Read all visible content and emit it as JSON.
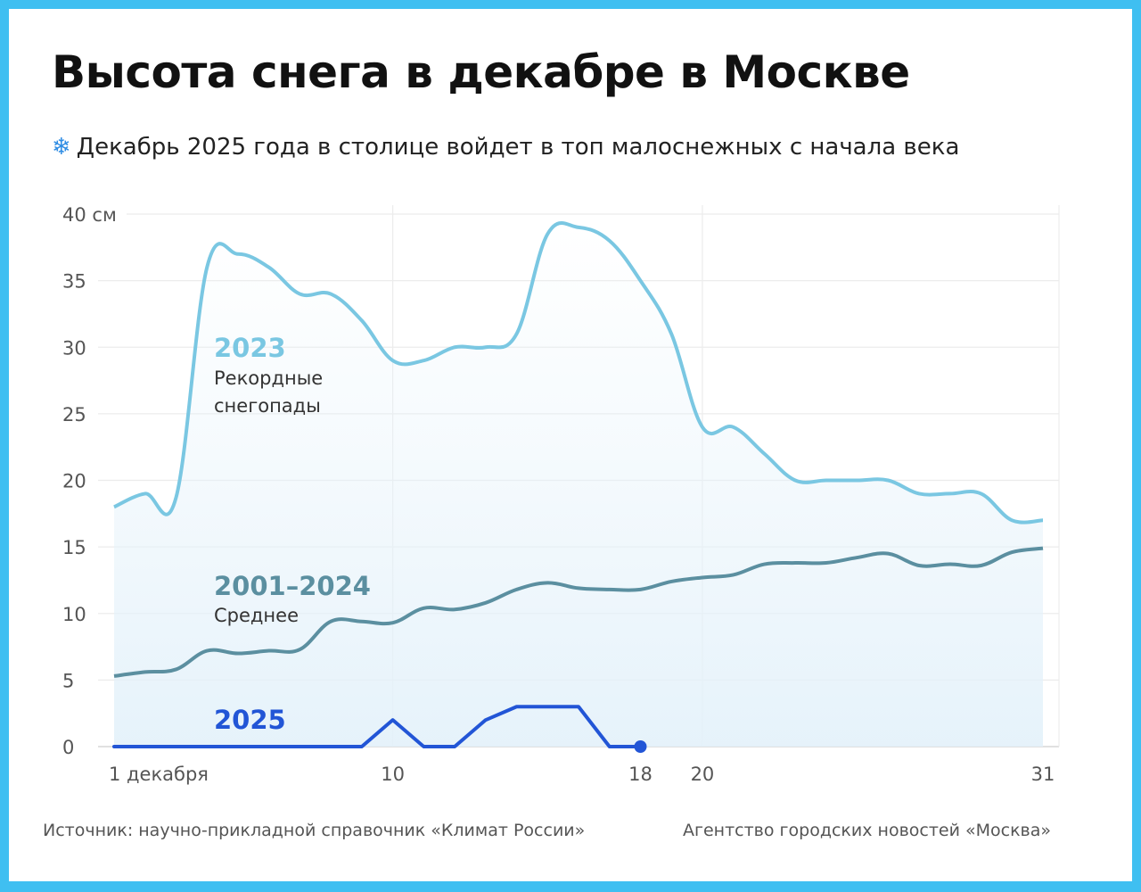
{
  "title": "Высота снега в декабре в Москве",
  "subtitle": "Декабрь 2025 года в столице войдет в топ малоснежных с начала века",
  "subtitle_icon": "snowflake-icon",
  "source": "Источник: научно-прикладной справочник «Климат России»",
  "agency": "Агентство городских новостей «Москва»",
  "colors": {
    "border": "#3fbff1",
    "s2023": "#7ac7e2",
    "avg": "#5b8fa0",
    "s2025": "#2255d6"
  },
  "chart_data": {
    "type": "line",
    "xlim": [
      1,
      31
    ],
    "ylim": [
      0,
      40
    ],
    "y_ticks": [
      0,
      5,
      10,
      15,
      20,
      25,
      30,
      35,
      40
    ],
    "y_tick_labels": [
      "0",
      "5",
      "10",
      "15",
      "20",
      "25",
      "30",
      "35",
      "40 см"
    ],
    "x_ticks": [
      1,
      10,
      18,
      20,
      31
    ],
    "x_tick_labels": [
      "1 декабря",
      "10",
      "18",
      "20",
      "31"
    ],
    "grid": true,
    "series": [
      {
        "name": "2023",
        "label": "Рекордные снегопады",
        "label_line2": "снегопады",
        "label_line1": "Рекордные",
        "x": [
          1,
          2,
          3,
          4,
          5,
          6,
          7,
          8,
          9,
          10,
          11,
          12,
          13,
          14,
          15,
          16,
          17,
          18,
          19,
          20,
          21,
          22,
          23,
          24,
          25,
          26,
          27,
          28,
          29,
          30,
          31
        ],
        "y": [
          18,
          19,
          18.7,
          36,
          37,
          36,
          34,
          34,
          32,
          29,
          29,
          30,
          30,
          31,
          38.5,
          39,
          38,
          35,
          31,
          24,
          24,
          22,
          20,
          20,
          20,
          20,
          19,
          19,
          19,
          17,
          17
        ]
      },
      {
        "name": "2001–2024",
        "label_line1": "Среднее",
        "x": [
          1,
          2,
          3,
          4,
          5,
          6,
          7,
          8,
          9,
          10,
          11,
          12,
          13,
          14,
          15,
          16,
          17,
          18,
          19,
          20,
          21,
          22,
          23,
          24,
          25,
          26,
          27,
          28,
          29,
          30,
          31
        ],
        "y": [
          5.3,
          5.6,
          5.8,
          7.2,
          7.0,
          7.2,
          7.3,
          9.4,
          9.4,
          9.3,
          10.4,
          10.3,
          10.8,
          11.8,
          12.3,
          11.9,
          11.8,
          11.8,
          12.4,
          12.7,
          12.9,
          13.7,
          13.8,
          13.8,
          14.2,
          14.5,
          13.6,
          13.7,
          13.6,
          14.6,
          14.9
        ]
      },
      {
        "name": "2025",
        "x": [
          1,
          2,
          3,
          4,
          5,
          6,
          7,
          8,
          9,
          10,
          11,
          12,
          13,
          14,
          15,
          16,
          17,
          18
        ],
        "y": [
          0,
          0,
          0,
          0,
          0,
          0,
          0,
          0,
          0,
          2,
          0,
          0,
          2,
          3,
          3,
          3,
          0,
          0
        ]
      }
    ]
  }
}
